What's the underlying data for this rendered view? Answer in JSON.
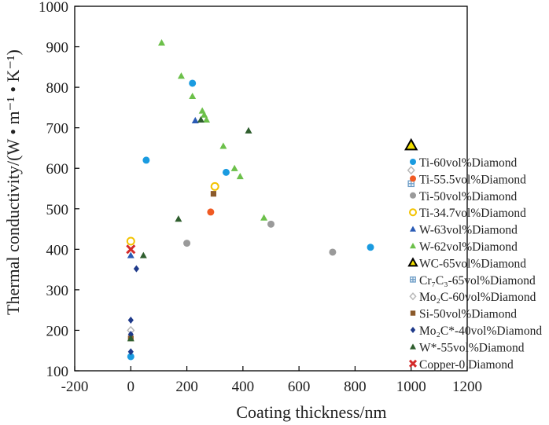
{
  "chart_data": {
    "type": "scatter",
    "title": "",
    "xlabel": "Coating thickness/nm",
    "ylabel": "Thermal conductivity/(W • m⁻¹ • K⁻¹)",
    "xlim": [
      -200,
      1200
    ],
    "ylim": [
      100,
      1000
    ],
    "xticks": [
      -200,
      0,
      200,
      400,
      600,
      800,
      1000,
      1200
    ],
    "yticks": [
      100,
      200,
      300,
      400,
      500,
      600,
      700,
      800,
      900,
      1000
    ],
    "xtick_labels": [
      "-200",
      "0",
      "200",
      "400",
      "600",
      "800",
      "1000",
      "1200"
    ],
    "ytick_labels": [
      "100",
      "200",
      "300",
      "400",
      "500",
      "600",
      "700",
      "800",
      "900",
      "1000"
    ],
    "grid": false,
    "legend_position": "right",
    "series": [
      {
        "name": "Ti-60vol%Diamond",
        "marker": "circle",
        "color": "#1a9be0",
        "x": [
          0,
          55,
          220,
          340,
          855
        ],
        "y": [
          135,
          620,
          810,
          590,
          405
        ]
      },
      {
        "name": "Ti-55.5vol%Diamond",
        "marker": "circle",
        "color": "#f05a23",
        "x": [
          285
        ],
        "y": [
          492
        ]
      },
      {
        "name": "Ti-50vol%Diamond",
        "marker": "circle",
        "color": "#9a9a9a",
        "x": [
          200,
          500,
          720
        ],
        "y": [
          415,
          462,
          393
        ]
      },
      {
        "name": "Ti-34.7vol%Diamond",
        "marker": "circle-open",
        "color": "#f3c300",
        "x": [
          0,
          300
        ],
        "y": [
          420,
          555
        ]
      },
      {
        "name": "W-63vol%Diamond",
        "marker": "triangle",
        "color": "#2a5bb5",
        "x": [
          0,
          230
        ],
        "y": [
          385,
          718
        ]
      },
      {
        "name": "W-62vol%Diamond",
        "marker": "triangle",
        "color": "#6cc04a",
        "x": [
          110,
          180,
          220,
          255,
          262,
          270,
          330,
          370,
          390,
          475
        ],
        "y": [
          910,
          828,
          778,
          742,
          732,
          720,
          655,
          600,
          580,
          478
        ]
      },
      {
        "name": "WC-65vol%Diamond",
        "marker": "triangle-open",
        "color": "#f3e000",
        "x": [
          1000
        ],
        "y": [
          657
        ]
      },
      {
        "name": "Cr₇C₃-65vol%Diamond",
        "marker": "square-cross",
        "color": "#6a9bc6",
        "x": [
          1000
        ],
        "y": [
          562
        ]
      },
      {
        "name": "Mo₂C-60vol%Diamond",
        "marker": "diamond-open",
        "color": "#b8b8b8",
        "x": [
          1000,
          0
        ],
        "y": [
          595,
          200
        ]
      },
      {
        "name": "Si-50vol%Diamond",
        "marker": "square",
        "color": "#8b5a2b",
        "x": [
          295,
          0
        ],
        "y": [
          537,
          180
        ]
      },
      {
        "name": "Mo₂C*-40vol%Diamond",
        "marker": "diamond",
        "color": "#1f3a8a",
        "x": [
          0,
          0,
          0,
          20
        ],
        "y": [
          147,
          190,
          225,
          352
        ]
      },
      {
        "name": "W*-55vol%Diamond",
        "marker": "triangle",
        "color": "#2f5e2e",
        "x": [
          0,
          45,
          170,
          250,
          420
        ],
        "y": [
          180,
          385,
          475,
          720,
          693
        ]
      },
      {
        "name": "Copper-0 Diamond",
        "marker": "cross",
        "color": "#d42a2a",
        "x": [
          0
        ],
        "y": [
          400
        ]
      }
    ]
  }
}
